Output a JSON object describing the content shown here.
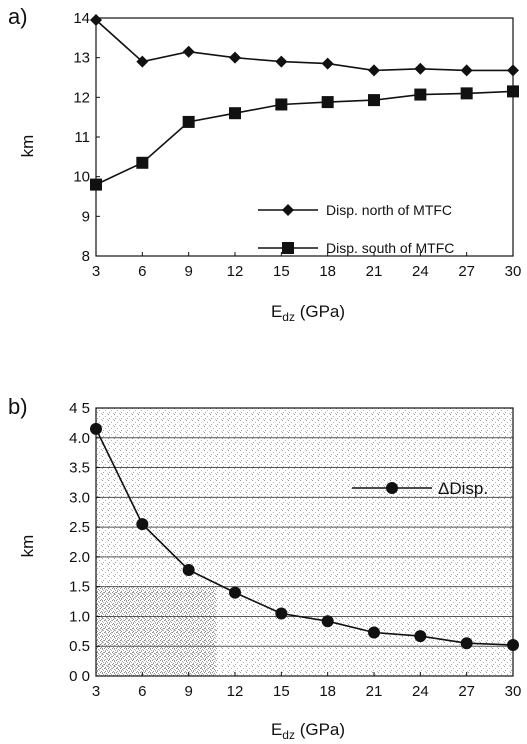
{
  "chart_data": [
    {
      "type": "line",
      "panel_label": "a)",
      "xlabel_main": "E",
      "xlabel_sub": "dz",
      "xlabel_unit": " (GPa)",
      "ylabel": "km",
      "x": [
        3,
        6,
        9,
        12,
        15,
        18,
        21,
        24,
        27,
        30
      ],
      "xlim": [
        3,
        30
      ],
      "ylim": [
        8,
        14
      ],
      "xticks": [
        "3",
        "6",
        "9",
        "12",
        "15",
        "18",
        "21",
        "24",
        "27",
        "30"
      ],
      "yticks": [
        "8",
        "9",
        "10",
        "11",
        "12",
        "13",
        "14"
      ],
      "legend_position": "bottom-right",
      "series": [
        {
          "name": "Disp. north of MTFC",
          "marker": "diamond",
          "values": [
            13.95,
            12.9,
            13.15,
            13.0,
            12.9,
            12.85,
            12.68,
            12.72,
            12.68,
            12.68
          ]
        },
        {
          "name": "Disp. south of MTFC",
          "marker": "square",
          "values": [
            9.8,
            10.35,
            11.38,
            11.6,
            11.82,
            11.88,
            11.93,
            12.07,
            12.1,
            12.15
          ]
        }
      ]
    },
    {
      "type": "line",
      "panel_label": "b)",
      "xlabel_main": "E",
      "xlabel_sub": "dz",
      "xlabel_unit": " (GPa)",
      "ylabel": "km",
      "x": [
        3,
        6,
        9,
        12,
        15,
        18,
        21,
        24,
        27,
        30
      ],
      "xlim": [
        3,
        30
      ],
      "ylim": [
        0,
        4.5
      ],
      "xticks": [
        "3",
        "6",
        "9",
        "12",
        "15",
        "18",
        "21",
        "24",
        "27",
        "30"
      ],
      "yticks": [
        "0 0",
        "0.5",
        "1.0",
        "1.5",
        "2.0",
        "2.5",
        "3.0",
        "3.5",
        "4.0",
        "4 5"
      ],
      "grid": true,
      "legend_position": "top-right",
      "series": [
        {
          "name": "ΔDisp.",
          "marker": "circle",
          "values": [
            4.15,
            2.55,
            1.78,
            1.4,
            1.05,
            0.92,
            0.73,
            0.67,
            0.55,
            0.52
          ]
        }
      ]
    }
  ]
}
